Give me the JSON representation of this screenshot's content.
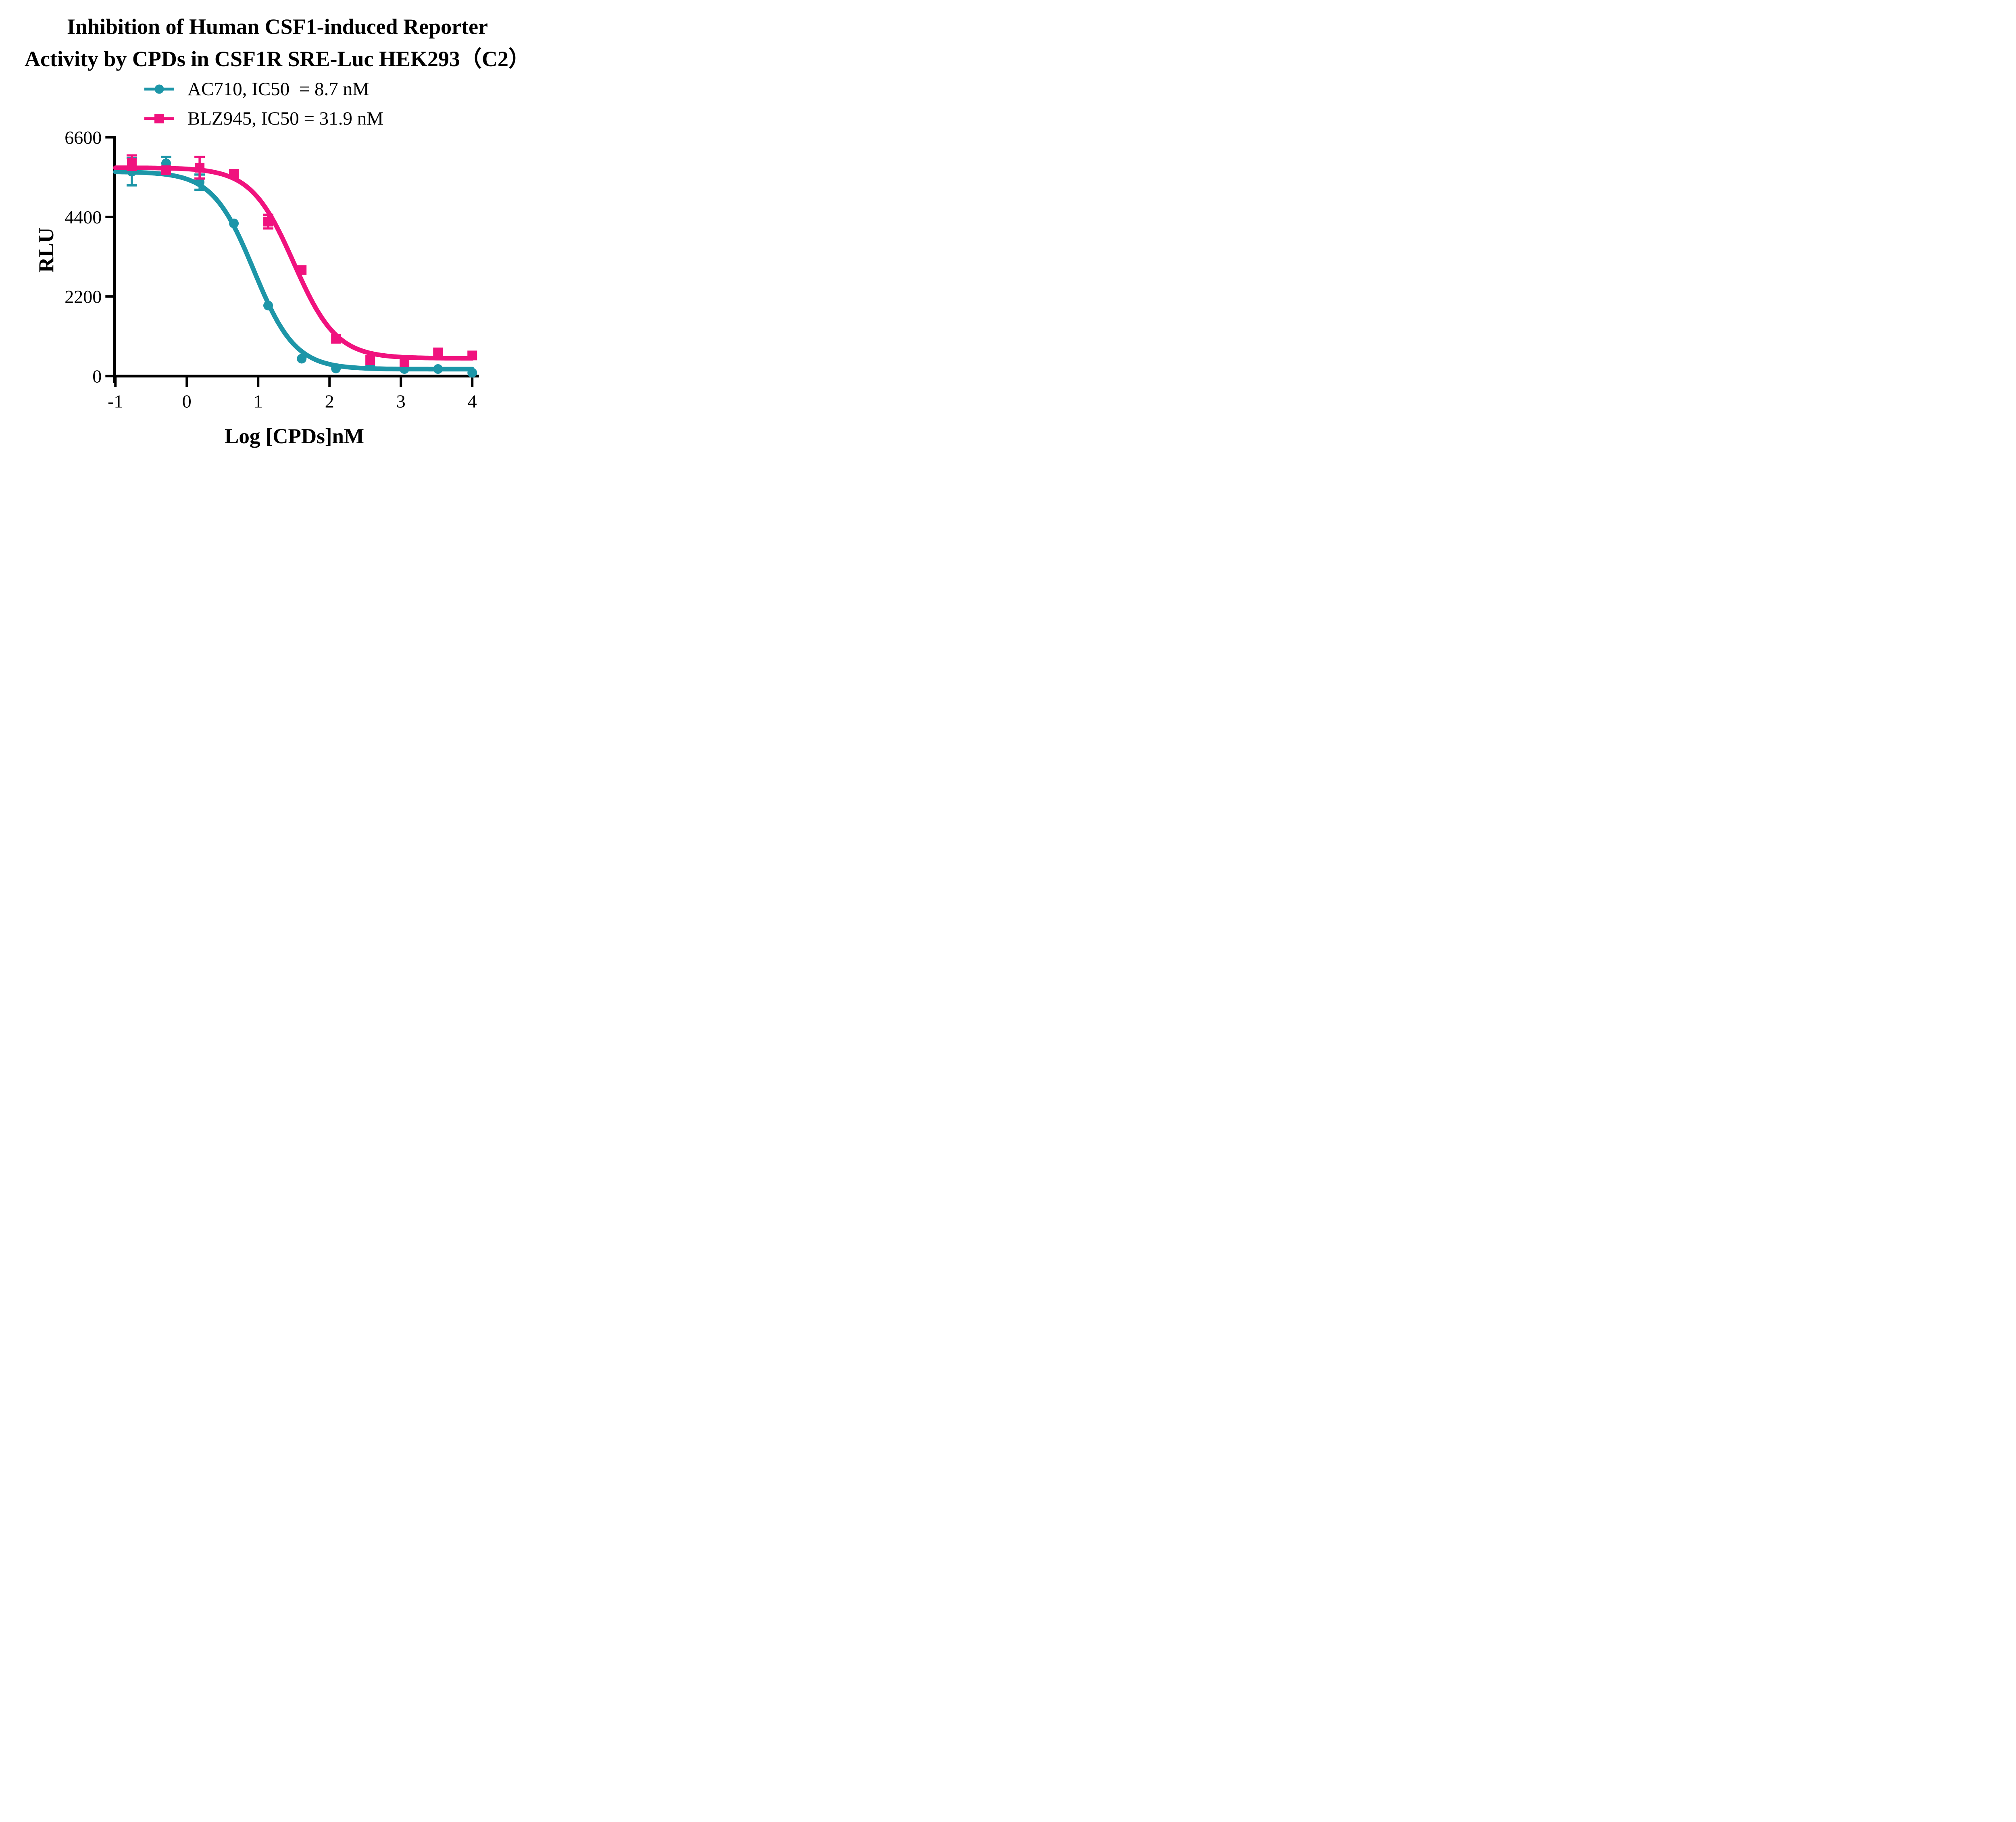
{
  "title": {
    "line1": "Inhibition of Human CSF1-induced Reporter",
    "line2": "Activity by CPDs in CSF1R SRE-Luc HEK293（C2）"
  },
  "y_axis_title": "RLU",
  "x_axis_title": "Log [CPDs]nM",
  "colors": {
    "ac710": "#1D96A8",
    "blz945": "#F0127E",
    "axis": "#000000"
  },
  "legend": {
    "items": [
      {
        "series": "AC710",
        "label": "AC710, IC50  = 8.7 nM",
        "marker": "circle",
        "color": "#1D96A8"
      },
      {
        "series": "BLZ945",
        "label": "BLZ945, IC50 = 31.9 nM",
        "marker": "square",
        "color": "#F0127E"
      }
    ]
  },
  "chart_data": {
    "type": "scatter",
    "subtype": "dose-response-inhibition",
    "title": "Inhibition of Human CSF1-induced Reporter Activity by CPDs in CSF1R SRE-Luc HEK293（C2）",
    "xlabel": "Log [CPDs]nM",
    "ylabel": "RLU",
    "xlim": [
      -1,
      4
    ],
    "ylim": [
      0,
      6600
    ],
    "x_ticks": [
      -1,
      0,
      1,
      2,
      3,
      4
    ],
    "y_ticks": [
      0,
      2200,
      4400,
      6600
    ],
    "grid": false,
    "legend_position": "top-center",
    "x": [
      -0.77,
      -0.29,
      0.18,
      0.66,
      1.14,
      1.61,
      2.09,
      2.57,
      3.05,
      3.52,
      4.0
    ],
    "series": [
      {
        "name": "AC710",
        "ic50_nM": 8.7,
        "color": "#1D96A8",
        "marker": "circle",
        "y": [
          5650,
          5880,
          5360,
          4220,
          1950,
          480,
          210,
          290,
          195,
          195,
          90
        ],
        "err": [
          380,
          180,
          210,
          0,
          0,
          0,
          0,
          0,
          0,
          0,
          0
        ],
        "fit4pl": {
          "top": 5650,
          "bottom": 190,
          "logIC50": 0.94,
          "hillSlope": 1.5
        }
      },
      {
        "name": "BLZ945",
        "ic50_nM": 31.9,
        "color": "#F0127E",
        "marker": "square",
        "y": [
          5900,
          5690,
          5760,
          5590,
          4270,
          2930,
          1030,
          440,
          385,
          655,
          570
        ],
        "err": [
          200,
          0,
          300,
          0,
          190,
          0,
          0,
          0,
          0,
          0,
          0
        ],
        "fit4pl": {
          "top": 5760,
          "bottom": 490,
          "logIC50": 1.5,
          "hillSlope": 1.45
        }
      }
    ]
  }
}
